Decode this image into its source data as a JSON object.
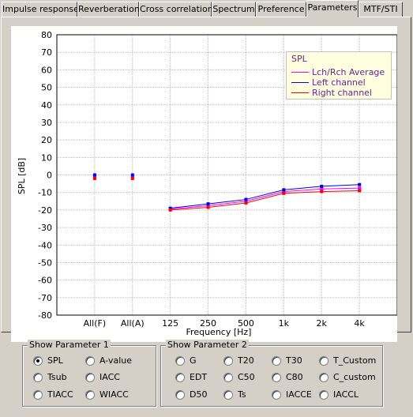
{
  "tabs": [
    "Impulse response",
    "Reverberation",
    "Cross correlation",
    "Spectrum",
    "Preference",
    "Parameters",
    "MTF/STI"
  ],
  "active_tab": "Parameters",
  "legend": {
    "title": "SPL",
    "items": [
      {
        "label": "Lch/Rch Average",
        "color": "#ff00ff"
      },
      {
        "label": "Left channel",
        "color": "#0000ff"
      },
      {
        "label": "Right channel",
        "color": "#ff0000"
      }
    ]
  },
  "chart_data": {
    "type": "line",
    "title": "",
    "xlabel": "Frequency [Hz]",
    "ylabel": "SPL [dB]",
    "categories": [
      "All(F)",
      "All(A)",
      "125",
      "250",
      "500",
      "1k",
      "2k",
      "4k"
    ],
    "ylim": [
      -80,
      80
    ],
    "yticks": [
      80,
      70,
      60,
      50,
      40,
      30,
      20,
      10,
      0,
      -10,
      -20,
      -30,
      -40,
      -50,
      -60,
      -70,
      -80
    ],
    "grid": true,
    "legend_position": "top-right",
    "series": [
      {
        "name": "Lch/Rch Average",
        "color": "#ff00ff",
        "values": [
          -1,
          -1,
          -19.5,
          -17.5,
          -15,
          -9.5,
          -8,
          -7.5
        ]
      },
      {
        "name": "Left channel",
        "color": "#0000ff",
        "values": [
          0,
          0,
          -19,
          -16.5,
          -14,
          -8.5,
          -6.5,
          -5.5
        ]
      },
      {
        "name": "Right channel",
        "color": "#ff0000",
        "values": [
          -2,
          -2,
          -20,
          -18.5,
          -16,
          -10.5,
          -9.5,
          -9
        ]
      }
    ]
  },
  "group1": {
    "title": "Show Parameter 1",
    "options": [
      "SPL",
      "A-value",
      "Tsub",
      "IACC",
      "TIACC",
      "WIACC"
    ],
    "selected": "SPL"
  },
  "group2": {
    "title": "Show Parameter 2",
    "options": [
      "G",
      "T20",
      "T30",
      "T_Custom",
      "EDT",
      "C50",
      "C80",
      "C_custom",
      "D50",
      "Ts",
      "IACCE",
      "IACCL"
    ]
  }
}
